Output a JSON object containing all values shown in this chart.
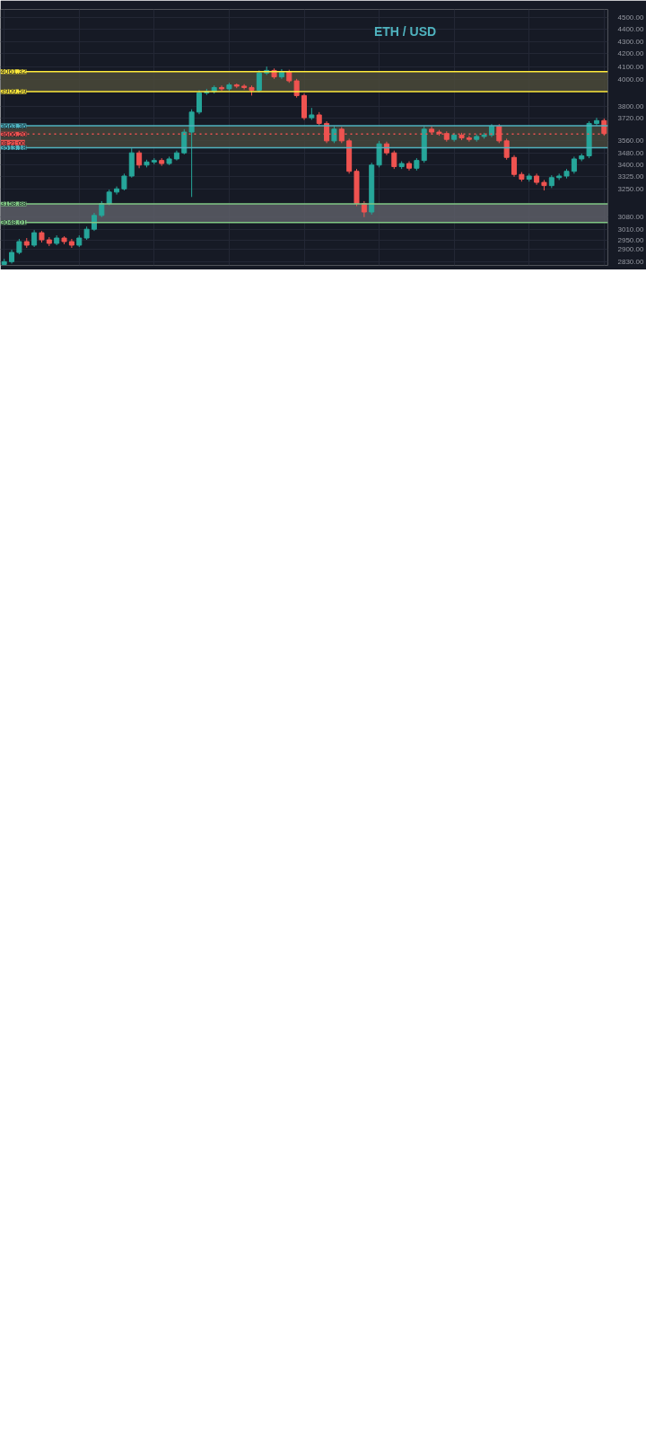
{
  "chart_data": {
    "type": "candlestick",
    "title": "ETH / USD",
    "categories": [
      null,
      null,
      null,
      null,
      null,
      null,
      null,
      null,
      null,
      null,
      null,
      null,
      null,
      null,
      null,
      null,
      null,
      null,
      null,
      null,
      null,
      null,
      null,
      null,
      null,
      null,
      null,
      null,
      null,
      null,
      null,
      null,
      null,
      null,
      null,
      null,
      null,
      null,
      null,
      null,
      null,
      null,
      null,
      null,
      null,
      null,
      null,
      null,
      null,
      null,
      null,
      null,
      null,
      null,
      null,
      null,
      null,
      null,
      null,
      null,
      null,
      null,
      null,
      null,
      null,
      null,
      null,
      null,
      null,
      null,
      null,
      null,
      null,
      null,
      null,
      null,
      null,
      null,
      null,
      null,
      null
    ],
    "ohlc": [
      [
        2815,
        2845,
        2810,
        2830
      ],
      [
        2830,
        2895,
        2820,
        2880
      ],
      [
        2880,
        2955,
        2870,
        2940
      ],
      [
        2940,
        2960,
        2905,
        2920
      ],
      [
        2920,
        3005,
        2910,
        2990
      ],
      [
        2990,
        3000,
        2935,
        2950
      ],
      [
        2950,
        2965,
        2915,
        2930
      ],
      [
        2930,
        2975,
        2920,
        2960
      ],
      [
        2960,
        2970,
        2925,
        2940
      ],
      [
        2940,
        2955,
        2905,
        2920
      ],
      [
        2920,
        2975,
        2910,
        2960
      ],
      [
        2960,
        3025,
        2950,
        3010
      ],
      [
        3010,
        3105,
        3000,
        3090
      ],
      [
        3090,
        3175,
        3080,
        3160
      ],
      [
        3160,
        3245,
        3150,
        3230
      ],
      [
        3230,
        3265,
        3215,
        3250
      ],
      [
        3250,
        3345,
        3240,
        3330
      ],
      [
        3330,
        3510,
        3320,
        3480
      ],
      [
        3480,
        3495,
        3380,
        3400
      ],
      [
        3400,
        3435,
        3385,
        3420
      ],
      [
        3420,
        3445,
        3405,
        3430
      ],
      [
        3430,
        3445,
        3395,
        3410
      ],
      [
        3410,
        3455,
        3400,
        3440
      ],
      [
        3440,
        3495,
        3430,
        3480
      ],
      [
        3480,
        3640,
        3470,
        3620
      ],
      [
        3620,
        3780,
        3200,
        3760
      ],
      [
        3760,
        3920,
        3745,
        3900
      ],
      [
        3900,
        3930,
        3885,
        3910
      ],
      [
        3910,
        3955,
        3895,
        3940
      ],
      [
        3940,
        3955,
        3915,
        3930
      ],
      [
        3930,
        3975,
        3915,
        3960
      ],
      [
        3960,
        3970,
        3935,
        3950
      ],
      [
        3950,
        3965,
        3925,
        3940
      ],
      [
        3940,
        3955,
        3880,
        3920
      ],
      [
        3920,
        4070,
        3905,
        4050
      ],
      [
        4050,
        4100,
        4035,
        4070
      ],
      [
        4070,
        4085,
        4005,
        4020
      ],
      [
        4020,
        4080,
        4005,
        4060
      ],
      [
        4060,
        4075,
        3975,
        3990
      ],
      [
        3990,
        4005,
        3865,
        3880
      ],
      [
        3880,
        3895,
        3705,
        3720
      ],
      [
        3720,
        3790,
        3705,
        3740
      ],
      [
        3740,
        3760,
        3665,
        3680
      ],
      [
        3680,
        3695,
        3545,
        3560
      ],
      [
        3560,
        3660,
        3545,
        3640
      ],
      [
        3640,
        3655,
        3545,
        3560
      ],
      [
        3560,
        3575,
        3345,
        3360
      ],
      [
        3360,
        3375,
        3145,
        3160
      ],
      [
        3160,
        3175,
        3080,
        3110
      ],
      [
        3110,
        3415,
        3095,
        3400
      ],
      [
        3400,
        3560,
        3385,
        3540
      ],
      [
        3540,
        3555,
        3465,
        3480
      ],
      [
        3480,
        3495,
        3375,
        3390
      ],
      [
        3390,
        3425,
        3375,
        3410
      ],
      [
        3410,
        3425,
        3365,
        3380
      ],
      [
        3380,
        3445,
        3365,
        3430
      ],
      [
        3430,
        3660,
        3415,
        3640
      ],
      [
        3640,
        3660,
        3605,
        3620
      ],
      [
        3620,
        3635,
        3595,
        3610
      ],
      [
        3610,
        3625,
        3555,
        3570
      ],
      [
        3570,
        3615,
        3555,
        3600
      ],
      [
        3600,
        3615,
        3565,
        3580
      ],
      [
        3580,
        3595,
        3555,
        3570
      ],
      [
        3570,
        3605,
        3555,
        3590
      ],
      [
        3590,
        3615,
        3575,
        3600
      ],
      [
        3600,
        3675,
        3585,
        3660
      ],
      [
        3660,
        3675,
        3545,
        3560
      ],
      [
        3560,
        3575,
        3435,
        3450
      ],
      [
        3450,
        3465,
        3325,
        3340
      ],
      [
        3340,
        3355,
        3295,
        3310
      ],
      [
        3310,
        3345,
        3295,
        3330
      ],
      [
        3330,
        3345,
        3275,
        3290
      ],
      [
        3290,
        3305,
        3240,
        3270
      ],
      [
        3270,
        3335,
        3255,
        3320
      ],
      [
        3320,
        3345,
        3305,
        3330
      ],
      [
        3330,
        3375,
        3315,
        3360
      ],
      [
        3360,
        3455,
        3345,
        3440
      ],
      [
        3440,
        3475,
        3425,
        3460
      ],
      [
        3460,
        3695,
        3445,
        3680
      ],
      [
        3680,
        3720,
        3665,
        3700
      ],
      [
        3700,
        3715,
        3595,
        3610
      ]
    ],
    "colors": [
      "#26a69a",
      "#26a69a",
      "#26a69a",
      "#ef5350",
      "#26a69a",
      "#ef5350",
      "#ef5350",
      "#26a69a",
      "#ef5350",
      "#ef5350",
      "#26a69a",
      "#26a69a",
      "#26a69a",
      "#26a69a",
      "#26a69a",
      "#26a69a",
      "#26a69a",
      "#26a69a",
      "#ef5350",
      "#26a69a",
      "#26a69a",
      "#ef5350",
      "#26a69a",
      "#26a69a",
      "#26a69a",
      "#26a69a",
      "#26a69a",
      "#26a69a",
      "#26a69a",
      "#ef5350",
      "#26a69a",
      "#ef5350",
      "#ef5350",
      "#ef5350",
      "#26a69a",
      "#26a69a",
      "#ef5350",
      "#26a69a",
      "#ef5350",
      "#ef5350",
      "#ef5350",
      "#26a69a",
      "#ef5350",
      "#ef5350",
      "#26a69a",
      "#ef5350",
      "#ef5350",
      "#ef5350",
      "#ef5350",
      "#26a69a",
      "#26a69a",
      "#ef5350",
      "#ef5350",
      "#26a69a",
      "#ef5350",
      "#26a69a",
      "#26a69a",
      "#ef5350",
      "#ef5350",
      "#ef5350",
      "#26a69a",
      "#ef5350",
      "#ef5350",
      "#26a69a",
      "#26a69a",
      "#26a69a",
      "#ef5350",
      "#ef5350",
      "#ef5350",
      "#ef5350",
      "#26a69a",
      "#ef5350",
      "#ef5350",
      "#26a69a",
      "#26a69a",
      "#26a69a",
      "#26a69a",
      "#26a69a",
      "#26a69a",
      "#26a69a",
      "#ef5350"
    ],
    "log": "y",
    "ylim": [
      2810,
      4570
    ],
    "yticks": [
      {
        "value": 4500,
        "label": "4500.00"
      },
      {
        "value": 4400,
        "label": "4400.00"
      },
      {
        "value": 4300,
        "label": "4300.00"
      },
      {
        "value": 4200,
        "label": "4200.00"
      },
      {
        "value": 4100,
        "label": "4100.00"
      },
      {
        "value": 4000,
        "label": "4000.00"
      },
      {
        "value": 3800,
        "label": "3800.00"
      },
      {
        "value": 3720,
        "label": "3720.00"
      },
      {
        "value": 3560,
        "label": "3560.00"
      },
      {
        "value": 3480,
        "label": "3480.00"
      },
      {
        "value": 3400,
        "label": "3400.00"
      },
      {
        "value": 3325,
        "label": "3325.00"
      },
      {
        "value": 3250,
        "label": "3250.00"
      },
      {
        "value": 3080,
        "label": "3080.00"
      },
      {
        "value": 3010,
        "label": "3010.00"
      },
      {
        "value": 2950,
        "label": "2950.00"
      },
      {
        "value": 2900,
        "label": "2900.00"
      },
      {
        "value": 2830,
        "label": "2830.00"
      }
    ],
    "grid": true,
    "bands": [
      {
        "axis": "y",
        "from": 3909.59,
        "to": 4061.32,
        "color": "#4a4a3a"
      },
      {
        "axis": "y",
        "from": 3513.18,
        "to": 3663.36,
        "color": "#45473c"
      },
      {
        "axis": "y",
        "from": 3048.01,
        "to": 3158.88,
        "color": "#5c5e66"
      }
    ],
    "ref_lines": [
      {
        "axis": "y",
        "value": 4061.32,
        "label": "4061.32",
        "color": "#ffeb3b"
      },
      {
        "axis": "y",
        "value": 3909.59,
        "label": "3909.59",
        "color": "#ffeb3b"
      },
      {
        "axis": "y",
        "value": 3663.36,
        "label": "3663.36",
        "color": "#4fb3bf"
      },
      {
        "axis": "y",
        "value": 3513.18,
        "label": "3513.18",
        "color": "#4fb3bf"
      },
      {
        "axis": "y",
        "value": 3158.88,
        "label": "3158.88",
        "color": "#81c784"
      },
      {
        "axis": "y",
        "value": 3048.01,
        "label": "3048.01",
        "color": "#81c784"
      },
      {
        "axis": "y",
        "value": 3606.2,
        "label": "3606.20",
        "color": "#ef5350",
        "line_style": "dotted"
      }
    ],
    "annotations": [
      "08:21:00"
    ]
  }
}
